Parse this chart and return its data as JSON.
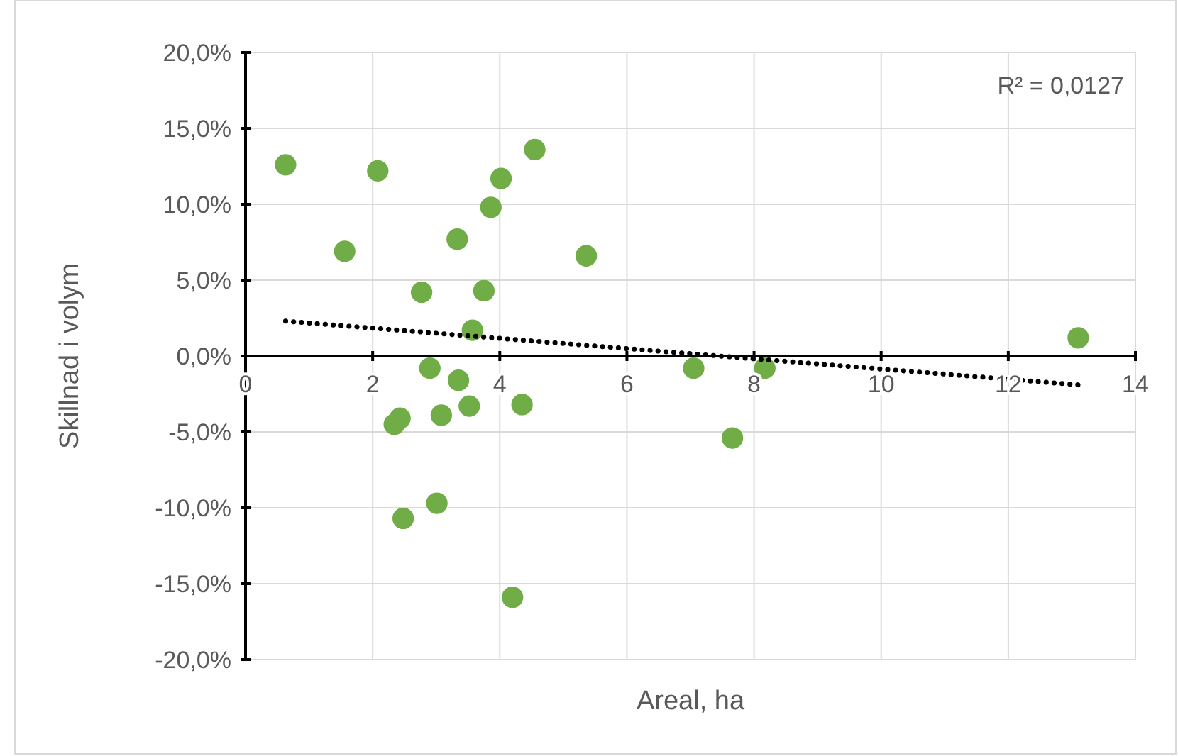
{
  "chart_data": {
    "type": "scatter",
    "xlabel": "Areal, ha",
    "ylabel": "Skillnad i volym",
    "xlim": [
      0,
      14
    ],
    "xticks": [
      0,
      2,
      4,
      6,
      8,
      10,
      12,
      14
    ],
    "ylim": [
      -20,
      20
    ],
    "yticks": [
      {
        "value": -20,
        "label": "-20,0%"
      },
      {
        "value": -15,
        "label": "-15,0%"
      },
      {
        "value": -10,
        "label": "-10,0%"
      },
      {
        "value": -5,
        "label": "-5,0%"
      },
      {
        "value": 0,
        "label": "0,0%"
      },
      {
        "value": 5,
        "label": "5,0%"
      },
      {
        "value": 10,
        "label": "10,0%"
      },
      {
        "value": 15,
        "label": "15,0%"
      },
      {
        "value": 20,
        "label": "20,0%"
      }
    ],
    "grid": true,
    "series": [
      {
        "color": "#70ad47",
        "marker": "circle",
        "x": [
          0.63,
          2.08,
          1.56,
          2.77,
          3.33,
          3.86,
          4.02,
          4.55,
          3.75,
          3.57,
          5.36,
          2.9,
          3.35,
          3.52,
          3.08,
          4.35,
          2.34,
          2.43,
          2.48,
          3.01,
          4.2,
          7.05,
          7.66,
          8.17,
          13.1
        ],
        "values": [
          12.6,
          12.2,
          6.9,
          4.2,
          7.7,
          9.8,
          11.7,
          13.6,
          4.3,
          1.7,
          6.6,
          -0.8,
          -1.6,
          -3.3,
          -3.9,
          -3.2,
          -4.5,
          -4.1,
          -10.7,
          -9.7,
          -15.9,
          -0.8,
          -5.4,
          -0.8,
          1.2
        ]
      },
      {
        "type": "line",
        "color": "#000000",
        "marker": "none",
        "line_style": "dotted",
        "x": [
          0.63,
          13.1
        ],
        "values": [
          2.3,
          -1.9
        ]
      }
    ],
    "annotations": [
      "R² = 0,0127"
    ]
  }
}
